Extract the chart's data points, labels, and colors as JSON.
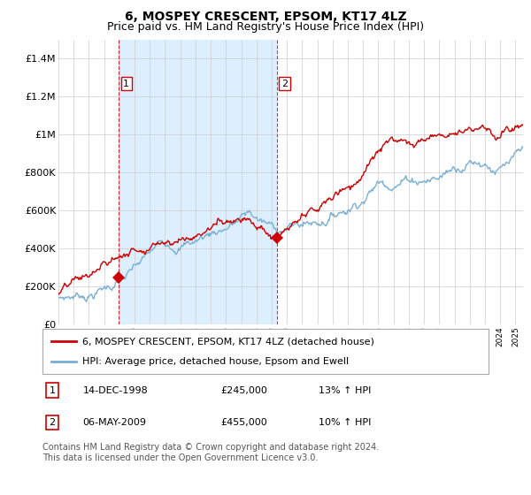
{
  "title": "6, MOSPEY CRESCENT, EPSOM, KT17 4LZ",
  "subtitle": "Price paid vs. HM Land Registry's House Price Index (HPI)",
  "legend_line1": "6, MOSPEY CRESCENT, EPSOM, KT17 4LZ (detached house)",
  "legend_line2": "HPI: Average price, detached house, Epsom and Ewell",
  "annotation1_label": "1",
  "annotation1_date": "14-DEC-1998",
  "annotation1_price": "£245,000",
  "annotation1_hpi": "13% ↑ HPI",
  "annotation2_label": "2",
  "annotation2_date": "06-MAY-2009",
  "annotation2_price": "£455,000",
  "annotation2_hpi": "10% ↑ HPI",
  "footnote": "Contains HM Land Registry data © Crown copyright and database right 2024.\nThis data is licensed under the Open Government Licence v3.0.",
  "house_color": "#cc0000",
  "hpi_color": "#7aafd4",
  "shade_color": "#ddeeff",
  "annotation_color": "#cc0000",
  "background_color": "#ffffff",
  "grid_color": "#cccccc",
  "title_fontsize": 10,
  "subtitle_fontsize": 9,
  "axis_fontsize": 8,
  "legend_fontsize": 8,
  "annotation_table_fontsize": 8,
  "footnote_fontsize": 7,
  "ylim": [
    0,
    1500000
  ],
  "yticks": [
    0,
    200000,
    400000,
    600000,
    800000,
    1000000,
    1200000,
    1400000
  ],
  "ytick_labels": [
    "£0",
    "£200K",
    "£400K",
    "£600K",
    "£800K",
    "£1M",
    "£1.2M",
    "£1.4M"
  ],
  "sale1_x": 1998.96,
  "sale1_y": 245000,
  "sale2_x": 2009.35,
  "sale2_y": 455000,
  "xmin": 1995,
  "xmax": 2025.5
}
